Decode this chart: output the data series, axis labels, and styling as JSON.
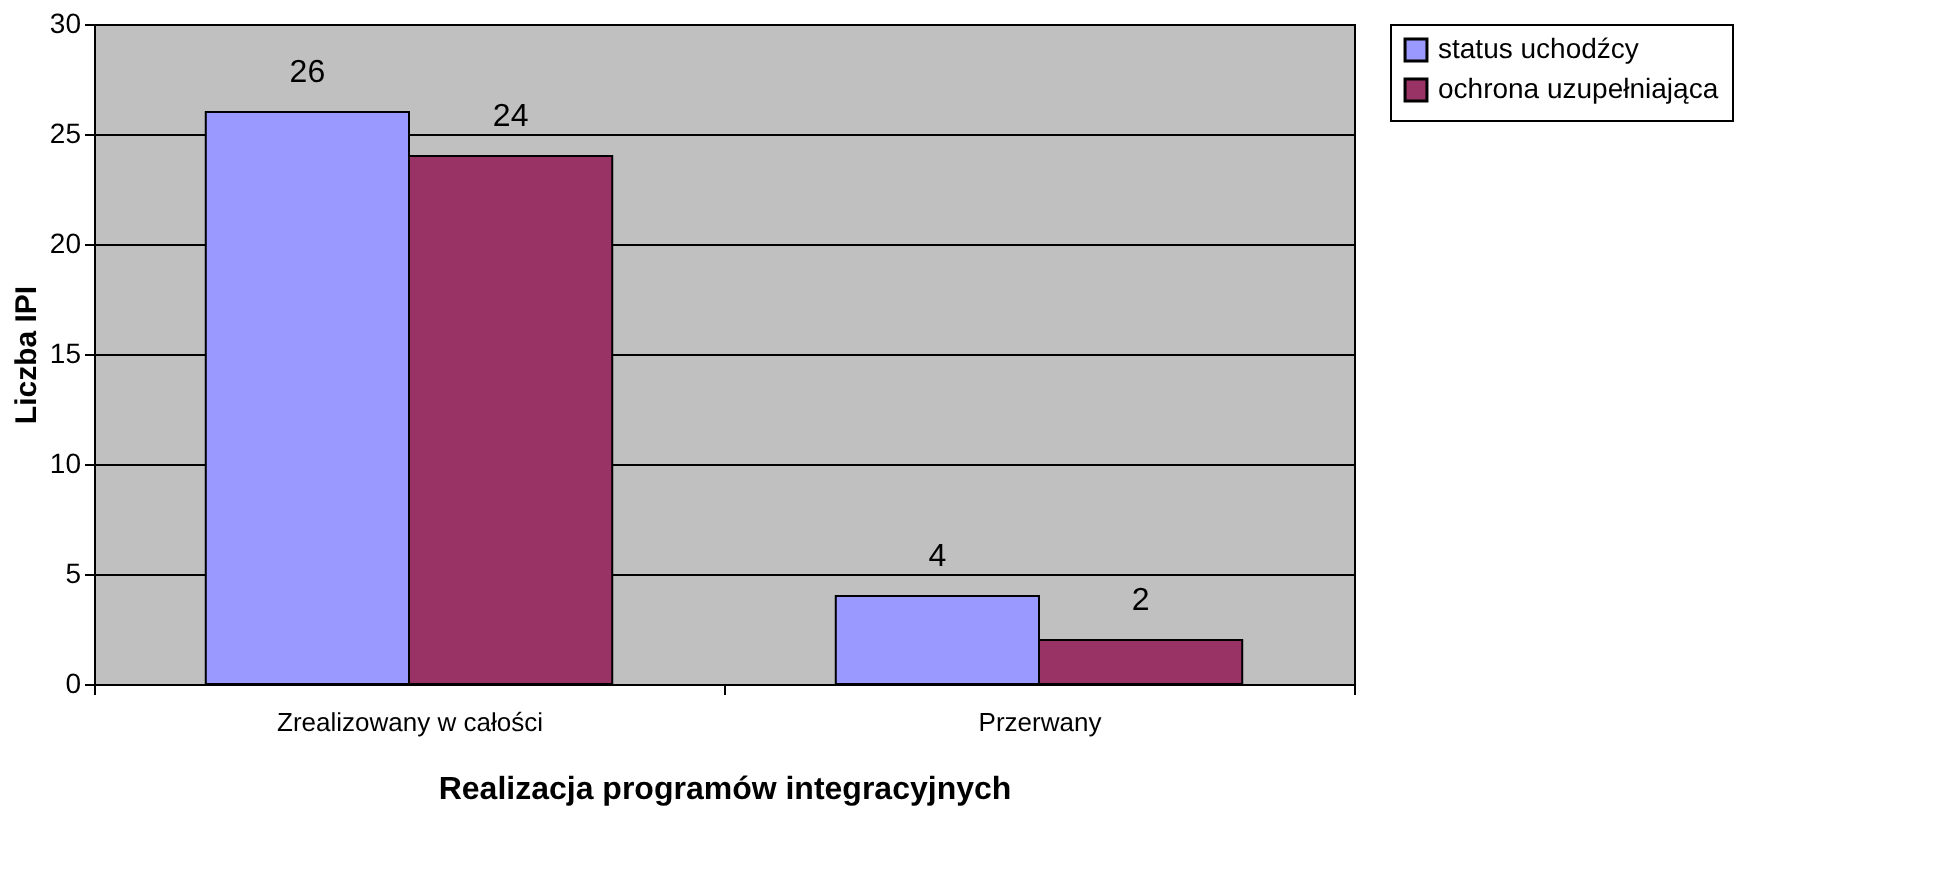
{
  "chart_data": {
    "type": "bar",
    "xlabel": "Realizacja programów integracyjnych",
    "ylabel": "Liczba IPI",
    "categories": [
      "Zrealizowany w całości",
      "Przerwany"
    ],
    "series": [
      {
        "name": "status uchodźcy",
        "color": "#9999ff",
        "values": [
          26,
          4
        ]
      },
      {
        "name": "ochrona uzupełniająca",
        "color": "#993366",
        "values": [
          24,
          2
        ]
      }
    ],
    "ylim": [
      0,
      30
    ],
    "yticks": [
      0,
      5,
      10,
      15,
      20,
      25,
      30
    ],
    "grid": "y",
    "legend": "right",
    "data_labels": true
  }
}
